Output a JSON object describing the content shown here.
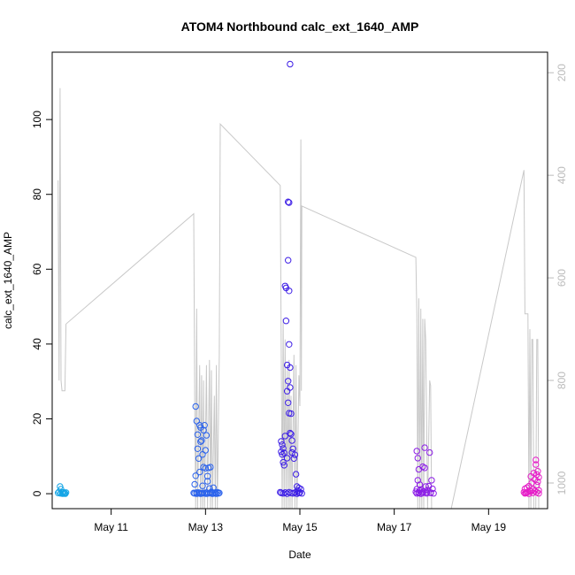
{
  "chart_data": {
    "type": "scatter",
    "title": "ATOM4 Northbound calc_ext_1640_AMP",
    "xlabel": "Date",
    "ylabel": "calc_ext_1640_AMP",
    "x_unit": "date",
    "xlim": [
      "2024-05-09T18:00",
      "2024-05-20T06:00"
    ],
    "ylim": [
      -4,
      118
    ],
    "y2lim_inverted": [
      1050,
      160
    ],
    "x_ticks": [
      {
        "date": "2024-05-11T00:00",
        "label": "May 11"
      },
      {
        "date": "2024-05-13T00:00",
        "label": "May 13"
      },
      {
        "date": "2024-05-15T00:00",
        "label": "May 15"
      },
      {
        "date": "2024-05-17T00:00",
        "label": "May 17"
      },
      {
        "date": "2024-05-19T00:00",
        "label": "May 19"
      }
    ],
    "y_ticks": [
      0,
      20,
      40,
      60,
      80,
      100
    ],
    "y2_ticks": [
      200,
      400,
      600,
      800,
      1000
    ],
    "grid": false,
    "secondary_color": "#bbbbbb",
    "depth_line": {
      "name": "",
      "color": "#c8c8c8",
      "points": [
        [
          "2024-05-09T21:00",
          410
        ],
        [
          "2024-05-09T21:30",
          800
        ],
        [
          "2024-05-09T22:00",
          230
        ],
        [
          "2024-05-09T22:30",
          800
        ],
        [
          "2024-05-09T23:00",
          820
        ],
        [
          "2024-05-10T00:30",
          820
        ],
        [
          "2024-05-10T01:00",
          690
        ],
        [
          "2024-05-12T18:00",
          475
        ],
        [
          "2024-05-12T18:30",
          840
        ],
        [
          "2024-05-12T19:00",
          1050
        ],
        [
          "2024-05-12T19:30",
          660
        ],
        [
          "2024-05-12T20:00",
          1050
        ],
        [
          "2024-05-12T21:00",
          770
        ],
        [
          "2024-05-12T21:30",
          1050
        ],
        [
          "2024-05-12T22:00",
          790
        ],
        [
          "2024-05-12T22:30",
          1050
        ],
        [
          "2024-05-12T23:00",
          800
        ],
        [
          "2024-05-12T23:30",
          1050
        ],
        [
          "2024-05-13T00:30",
          770
        ],
        [
          "2024-05-13T01:00",
          1050
        ],
        [
          "2024-05-13T02:00",
          760
        ],
        [
          "2024-05-13T02:30",
          1050
        ],
        [
          "2024-05-13T03:00",
          780
        ],
        [
          "2024-05-13T03:30",
          1050
        ],
        [
          "2024-05-13T04:30",
          830
        ],
        [
          "2024-05-13T05:00",
          1050
        ],
        [
          "2024-05-13T05:30",
          770
        ],
        [
          "2024-05-13T06:00",
          1050
        ],
        [
          "2024-05-13T07:00",
          750
        ],
        [
          "2024-05-13T07:30",
          300
        ],
        [
          "2024-05-14T14:00",
          420
        ],
        [
          "2024-05-14T14:30",
          740
        ],
        [
          "2024-05-14T15:00",
          1050
        ],
        [
          "2024-05-14T15:30",
          680
        ],
        [
          "2024-05-14T16:00",
          1050
        ],
        [
          "2024-05-14T16:30",
          720
        ],
        [
          "2024-05-14T17:00",
          1050
        ],
        [
          "2024-05-14T17:30",
          780
        ],
        [
          "2024-05-14T18:00",
          1050
        ],
        [
          "2024-05-14T18:30",
          760
        ],
        [
          "2024-05-14T19:00",
          1050
        ],
        [
          "2024-05-14T19:30",
          830
        ],
        [
          "2024-05-14T20:00",
          1050
        ],
        [
          "2024-05-14T21:00",
          750
        ],
        [
          "2024-05-14T21:30",
          1050
        ],
        [
          "2024-05-14T22:00",
          770
        ],
        [
          "2024-05-14T22:30",
          1050
        ],
        [
          "2024-05-14T23:30",
          790
        ],
        [
          "2024-05-15T00:00",
          850
        ],
        [
          "2024-05-15T00:30",
          330
        ],
        [
          "2024-05-15T00:45",
          820
        ],
        [
          "2024-05-15T01:00",
          460
        ],
        [
          "2024-05-17T11:00",
          560
        ],
        [
          "2024-05-17T11:30",
          670
        ],
        [
          "2024-05-17T12:00",
          1050
        ],
        [
          "2024-05-17T12:30",
          640
        ],
        [
          "2024-05-17T13:00",
          1050
        ],
        [
          "2024-05-17T13:30",
          660
        ],
        [
          "2024-05-17T14:00",
          1050
        ],
        [
          "2024-05-17T14:30",
          680
        ],
        [
          "2024-05-17T15:00",
          1050
        ],
        [
          "2024-05-17T15:30",
          680
        ],
        [
          "2024-05-17T16:00",
          720
        ],
        [
          "2024-05-17T17:00",
          1050
        ],
        [
          "2024-05-17T18:00",
          800
        ],
        [
          "2024-05-17T18:30",
          810
        ],
        [
          "2024-05-17T19:00",
          1050
        ],
        [
          "2024-05-17T20:00",
          1050
        ],
        [
          "2024-05-18T05:00",
          1050
        ],
        [
          "2024-05-19T18:00",
          390
        ],
        [
          "2024-05-19T18:30",
          670
        ],
        [
          "2024-05-19T19:00",
          670
        ],
        [
          "2024-05-19T20:00",
          670
        ],
        [
          "2024-05-19T20:30",
          1050
        ],
        [
          "2024-05-19T21:00",
          700
        ],
        [
          "2024-05-19T21:30",
          1050
        ],
        [
          "2024-05-19T22:00",
          720
        ],
        [
          "2024-05-19T22:30",
          720
        ],
        [
          "2024-05-19T23:00",
          1050
        ],
        [
          "2024-05-20T00:00",
          1050
        ],
        [
          "2024-05-20T00:30",
          720
        ],
        [
          "2024-05-20T01:00",
          720
        ],
        [
          "2024-05-20T01:30",
          1050
        ]
      ]
    },
    "series": [
      {
        "color": "#14a5e6",
        "points": [
          [
            "2024-05-09T21:00",
            0.2
          ],
          [
            "2024-05-09T21:30",
            0.5
          ],
          [
            "2024-05-09T22:00",
            1.9
          ],
          [
            "2024-05-09T22:15",
            0.1
          ],
          [
            "2024-05-09T22:30",
            1.2
          ],
          [
            "2024-05-09T23:00",
            0.3
          ],
          [
            "2024-05-09T23:20",
            0.0
          ],
          [
            "2024-05-09T23:40",
            0.4
          ],
          [
            "2024-05-10T00:00",
            0.1
          ],
          [
            "2024-05-10T00:20",
            0.2
          ],
          [
            "2024-05-10T00:40",
            0.0
          ],
          [
            "2024-05-10T01:00",
            0.3
          ]
        ]
      },
      {
        "color": "#2a62ec",
        "points": [
          [
            "2024-05-12T18:00",
            0.2
          ],
          [
            "2024-05-12T18:30",
            2.5
          ],
          [
            "2024-05-12T19:00",
            4.8
          ],
          [
            "2024-05-12T19:00",
            23.3
          ],
          [
            "2024-05-12T19:30",
            19.4
          ],
          [
            "2024-05-12T19:30",
            0.0
          ],
          [
            "2024-05-12T20:00",
            15.8
          ],
          [
            "2024-05-12T20:00",
            12.0
          ],
          [
            "2024-05-12T20:30",
            9.4
          ],
          [
            "2024-05-12T20:30",
            0.3
          ],
          [
            "2024-05-12T21:00",
            18.3
          ],
          [
            "2024-05-12T21:00",
            5.8
          ],
          [
            "2024-05-12T21:30",
            17.7
          ],
          [
            "2024-05-12T21:30",
            13.9
          ],
          [
            "2024-05-12T22:00",
            14.2
          ],
          [
            "2024-05-12T22:00",
            0.1
          ],
          [
            "2024-05-12T22:30",
            10.5
          ],
          [
            "2024-05-12T22:30",
            2.1
          ],
          [
            "2024-05-12T23:00",
            17.0
          ],
          [
            "2024-05-12T23:00",
            7.1
          ],
          [
            "2024-05-12T23:30",
            18.3
          ],
          [
            "2024-05-12T23:30",
            0.2
          ],
          [
            "2024-05-13T00:00",
            6.8
          ],
          [
            "2024-05-13T00:00",
            11.6
          ],
          [
            "2024-05-13T00:30",
            15.6
          ],
          [
            "2024-05-13T00:30",
            0.0
          ],
          [
            "2024-05-13T01:00",
            4.7
          ],
          [
            "2024-05-13T01:00",
            3.3
          ],
          [
            "2024-05-13T01:30",
            6.9
          ],
          [
            "2024-05-13T02:00",
            1.4
          ],
          [
            "2024-05-13T02:30",
            7.1
          ],
          [
            "2024-05-13T03:00",
            0.5
          ],
          [
            "2024-05-13T03:30",
            0.2
          ],
          [
            "2024-05-13T04:00",
            1.6
          ],
          [
            "2024-05-13T04:30",
            0.1
          ],
          [
            "2024-05-13T05:00",
            0.3
          ],
          [
            "2024-05-13T05:30",
            0.0
          ],
          [
            "2024-05-13T06:00",
            0.4
          ],
          [
            "2024-05-13T06:30",
            0.1
          ],
          [
            "2024-05-13T07:00",
            0.2
          ],
          [
            "2024-05-12T18:30",
            0.1
          ],
          [
            "2024-05-12T19:30",
            0.3
          ],
          [
            "2024-05-12T20:30",
            0.1
          ],
          [
            "2024-05-12T21:30",
            0.0
          ],
          [
            "2024-05-12T22:30",
            0.2
          ],
          [
            "2024-05-12T23:30",
            0.1
          ],
          [
            "2024-05-13T00:30",
            0.3
          ],
          [
            "2024-05-13T01:30",
            0.1
          ],
          [
            "2024-05-13T02:30",
            0.2
          ],
          [
            "2024-05-13T03:30",
            0.0
          ]
        ]
      },
      {
        "color": "#3d1ee6",
        "points": [
          [
            "2024-05-14T14:00",
            0.4
          ],
          [
            "2024-05-14T14:30",
            14.0
          ],
          [
            "2024-05-14T14:30",
            11.2
          ],
          [
            "2024-05-14T15:00",
            10.5
          ],
          [
            "2024-05-14T15:00",
            13.1
          ],
          [
            "2024-05-14T15:30",
            8.4
          ],
          [
            "2024-05-14T15:30",
            12.1
          ],
          [
            "2024-05-14T16:00",
            10.9
          ],
          [
            "2024-05-14T16:00",
            7.6
          ],
          [
            "2024-05-14T16:30",
            15.4
          ],
          [
            "2024-05-14T16:30",
            55.5
          ],
          [
            "2024-05-14T17:00",
            55.0
          ],
          [
            "2024-05-14T17:00",
            46.2
          ],
          [
            "2024-05-14T17:30",
            27.4
          ],
          [
            "2024-05-14T17:30",
            34.4
          ],
          [
            "2024-05-14T17:30",
            9.5
          ],
          [
            "2024-05-14T18:00",
            78.0
          ],
          [
            "2024-05-14T18:00",
            24.3
          ],
          [
            "2024-05-14T18:00",
            62.4
          ],
          [
            "2024-05-14T18:00",
            30.1
          ],
          [
            "2024-05-14T18:30",
            77.8
          ],
          [
            "2024-05-14T18:30",
            21.5
          ],
          [
            "2024-05-14T18:30",
            54.2
          ],
          [
            "2024-05-14T18:30",
            39.9
          ],
          [
            "2024-05-14T19:00",
            114.8
          ],
          [
            "2024-05-14T19:00",
            33.7
          ],
          [
            "2024-05-14T19:00",
            28.4
          ],
          [
            "2024-05-14T19:00",
            16.2
          ],
          [
            "2024-05-14T19:30",
            21.4
          ],
          [
            "2024-05-14T19:30",
            15.9
          ],
          [
            "2024-05-14T20:00",
            11.0
          ],
          [
            "2024-05-14T20:00",
            14.2
          ],
          [
            "2024-05-14T20:30",
            12.0
          ],
          [
            "2024-05-14T21:00",
            9.4
          ],
          [
            "2024-05-14T21:30",
            10.4
          ],
          [
            "2024-05-14T22:00",
            5.2
          ],
          [
            "2024-05-14T22:30",
            1.9
          ],
          [
            "2024-05-14T23:00",
            0.8
          ],
          [
            "2024-05-14T23:30",
            1.5
          ],
          [
            "2024-05-15T00:00",
            0.3
          ],
          [
            "2024-05-15T00:30",
            1.2
          ],
          [
            "2024-05-15T01:00",
            0.1
          ],
          [
            "2024-05-14T14:30",
            0.2
          ],
          [
            "2024-05-14T15:30",
            0.1
          ],
          [
            "2024-05-14T16:30",
            0.3
          ],
          [
            "2024-05-14T17:30",
            0.0
          ],
          [
            "2024-05-14T18:30",
            0.4
          ],
          [
            "2024-05-14T19:30",
            0.2
          ],
          [
            "2024-05-14T20:30",
            0.1
          ],
          [
            "2024-05-14T21:30",
            0.3
          ],
          [
            "2024-05-14T22:30",
            0.0
          ],
          [
            "2024-05-14T23:30",
            0.2
          ]
        ]
      },
      {
        "color": "#8c1ee6",
        "points": [
          [
            "2024-05-17T11:00",
            0.5
          ],
          [
            "2024-05-17T11:30",
            11.4
          ],
          [
            "2024-05-17T11:30",
            1.2
          ],
          [
            "2024-05-17T12:00",
            9.5
          ],
          [
            "2024-05-17T12:00",
            3.6
          ],
          [
            "2024-05-17T12:30",
            0.2
          ],
          [
            "2024-05-17T12:30",
            6.5
          ],
          [
            "2024-05-17T13:00",
            2.4
          ],
          [
            "2024-05-17T13:00",
            0.8
          ],
          [
            "2024-05-17T13:30",
            1.1
          ],
          [
            "2024-05-17T14:00",
            0.3
          ],
          [
            "2024-05-17T14:30",
            7.2
          ],
          [
            "2024-05-17T15:00",
            0.6
          ],
          [
            "2024-05-17T15:30",
            12.3
          ],
          [
            "2024-05-17T15:30",
            6.9
          ],
          [
            "2024-05-17T16:00",
            1.9
          ],
          [
            "2024-05-17T16:30",
            0.4
          ],
          [
            "2024-05-17T17:00",
            1.0
          ],
          [
            "2024-05-17T17:30",
            2.0
          ],
          [
            "2024-05-17T18:00",
            11.0
          ],
          [
            "2024-05-17T18:30",
            0.2
          ],
          [
            "2024-05-17T19:00",
            3.6
          ],
          [
            "2024-05-17T19:30",
            1.3
          ],
          [
            "2024-05-17T20:00",
            0.1
          ],
          [
            "2024-05-17T11:30",
            0.1
          ],
          [
            "2024-05-17T12:30",
            0.3
          ],
          [
            "2024-05-17T13:30",
            0.0
          ],
          [
            "2024-05-17T14:30",
            0.2
          ],
          [
            "2024-05-17T16:30",
            0.1
          ],
          [
            "2024-05-17T18:30",
            0.3
          ]
        ]
      },
      {
        "color": "#e61ec8",
        "points": [
          [
            "2024-05-19T18:00",
            0.4
          ],
          [
            "2024-05-19T18:30",
            1.3
          ],
          [
            "2024-05-19T19:00",
            0.2
          ],
          [
            "2024-05-19T19:30",
            1.6
          ],
          [
            "2024-05-19T20:00",
            0.5
          ],
          [
            "2024-05-19T20:30",
            2.0
          ],
          [
            "2024-05-19T21:00",
            0.8
          ],
          [
            "2024-05-19T21:30",
            4.6
          ],
          [
            "2024-05-19T22:00",
            2.9
          ],
          [
            "2024-05-19T22:30",
            1.1
          ],
          [
            "2024-05-19T23:00",
            5.5
          ],
          [
            "2024-05-19T23:30",
            3.8
          ],
          [
            "2024-05-20T00:00",
            9.0
          ],
          [
            "2024-05-20T00:00",
            7.8
          ],
          [
            "2024-05-20T00:30",
            5.1
          ],
          [
            "2024-05-20T00:30",
            2.3
          ],
          [
            "2024-05-20T01:00",
            6.0
          ],
          [
            "2024-05-20T01:00",
            3.2
          ],
          [
            "2024-05-20T01:30",
            4.4
          ],
          [
            "2024-05-20T01:30",
            0.9
          ],
          [
            "2024-05-19T18:30",
            0.1
          ],
          [
            "2024-05-19T19:30",
            0.3
          ],
          [
            "2024-05-19T20:30",
            0.0
          ],
          [
            "2024-05-19T21:30",
            0.6
          ],
          [
            "2024-05-19T22:30",
            0.2
          ],
          [
            "2024-05-19T23:30",
            0.7
          ],
          [
            "2024-05-20T00:30",
            0.4
          ],
          [
            "2024-05-20T01:30",
            0.1
          ]
        ]
      }
    ]
  }
}
